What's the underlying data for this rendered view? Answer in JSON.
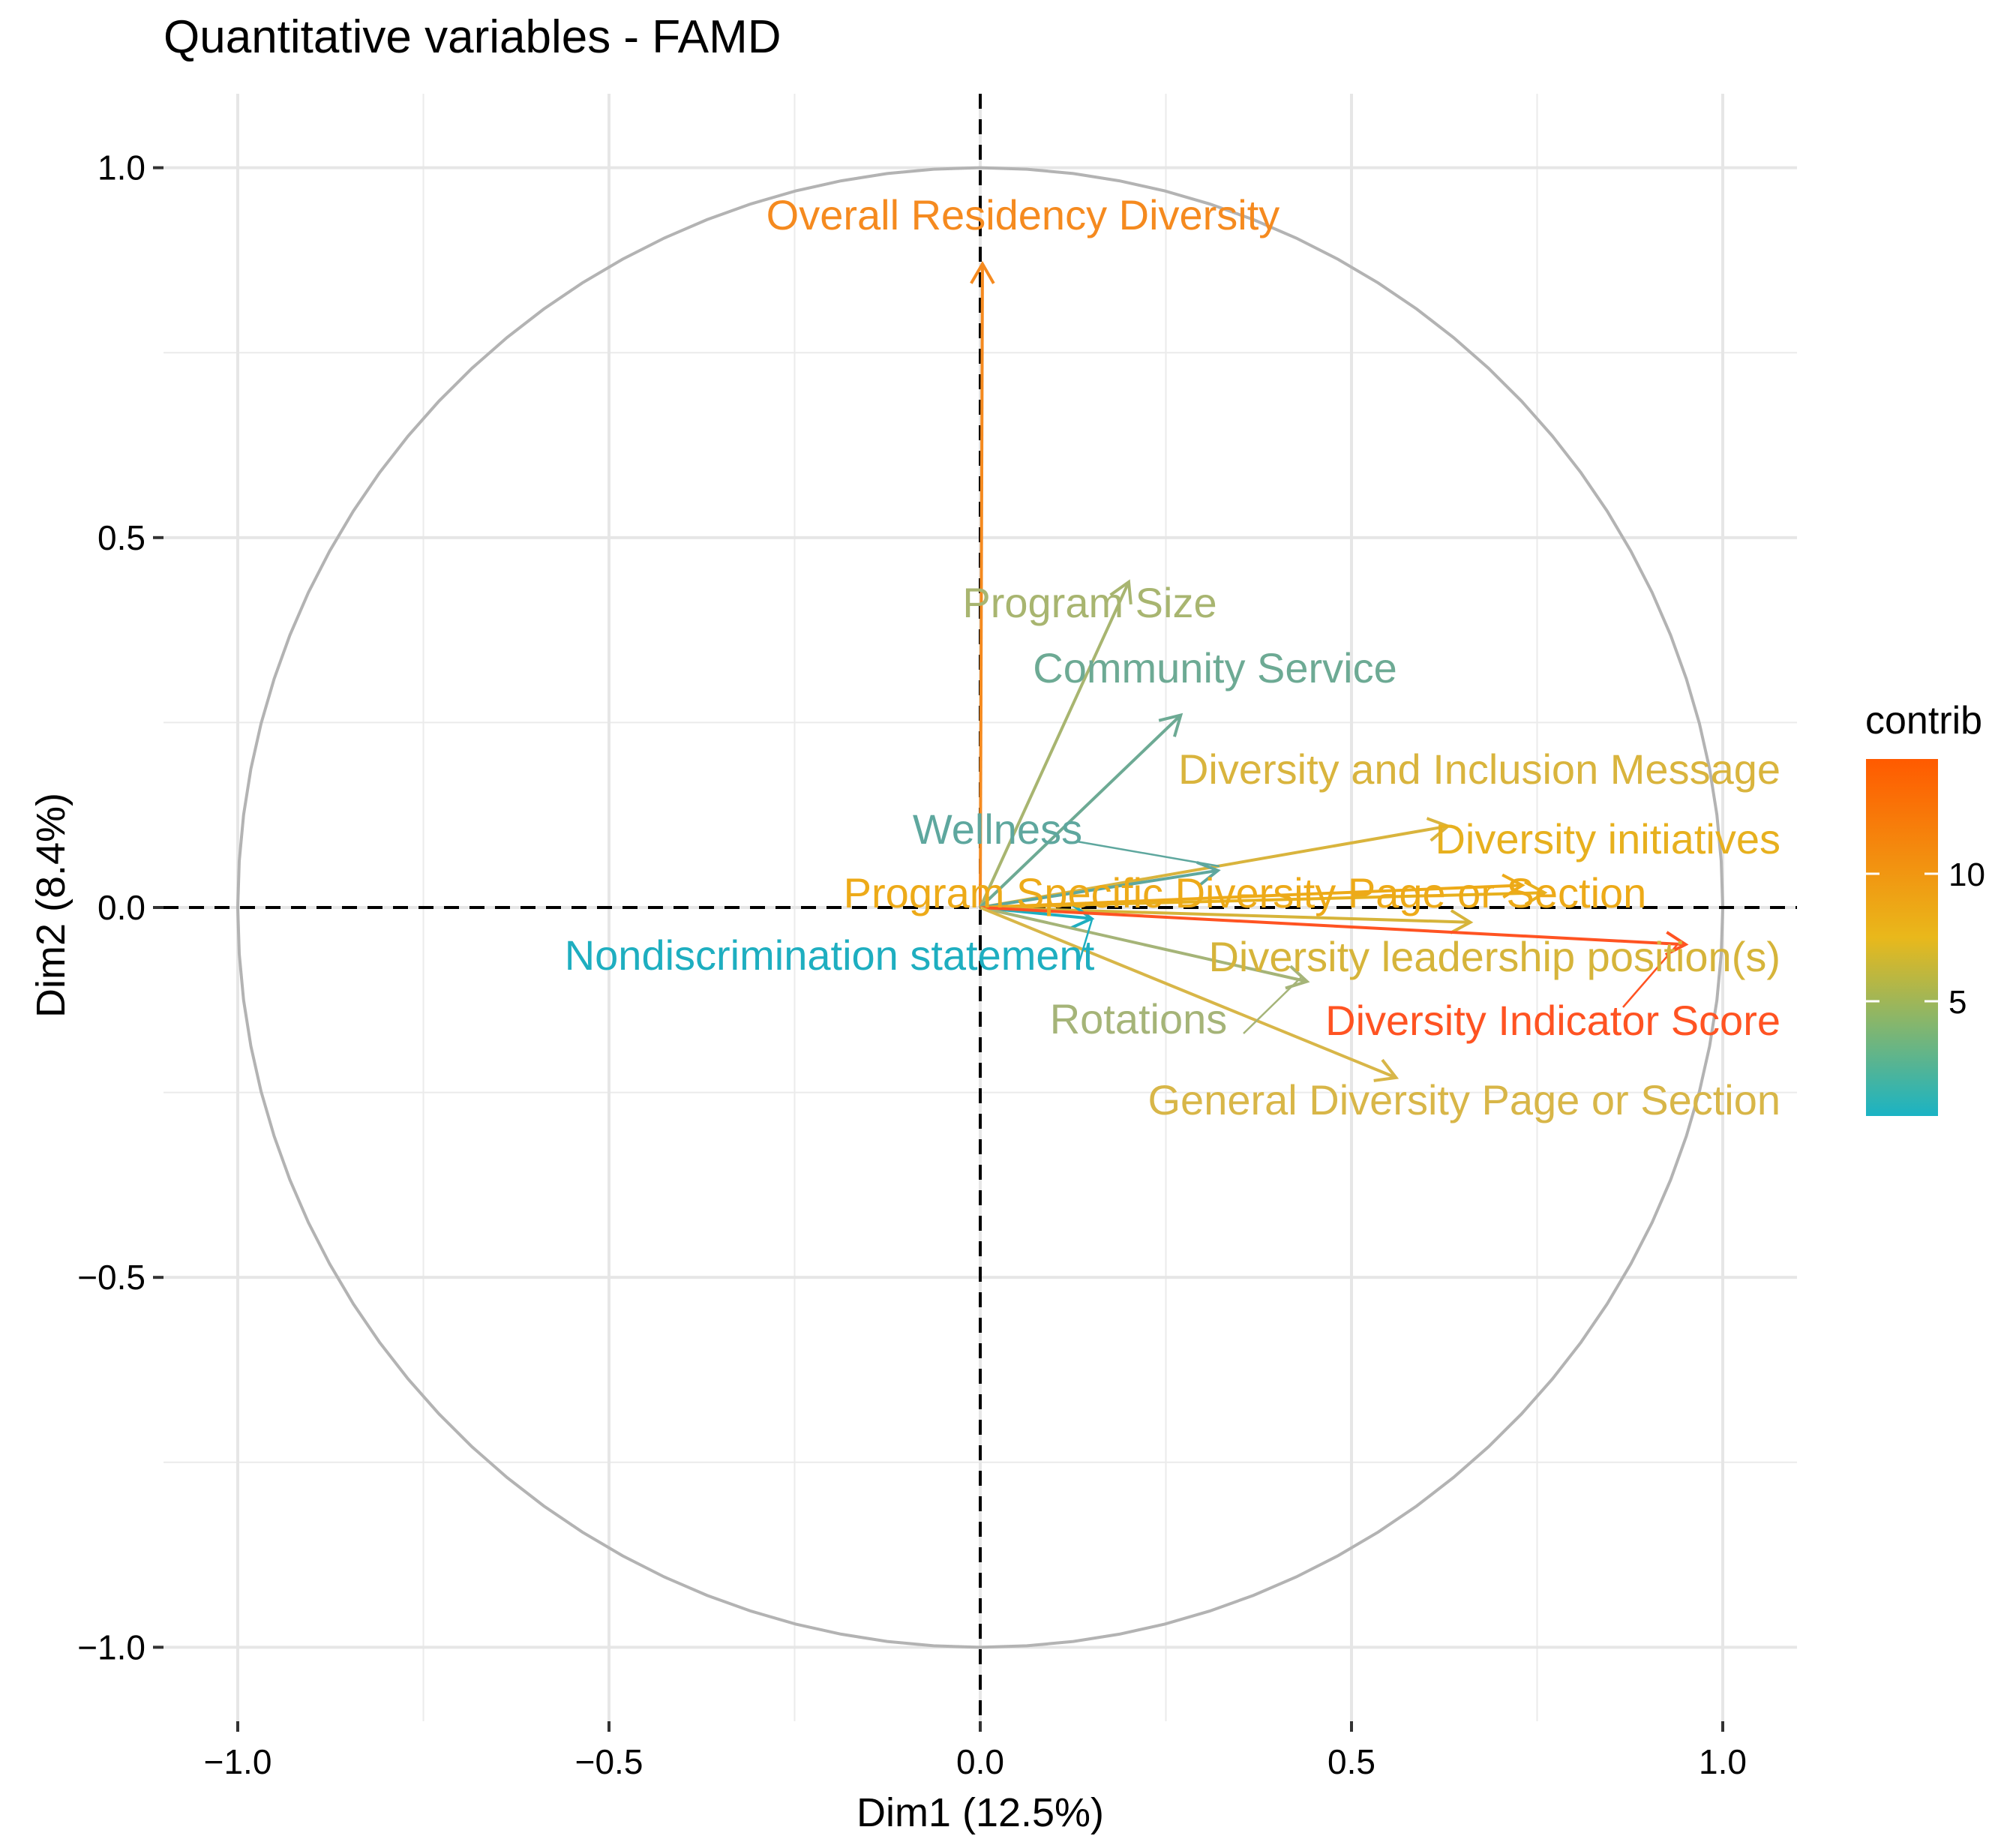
{
  "chart_data": {
    "type": "scatter",
    "subtype": "variable-correlation-circle",
    "title": "Quantitative variables - FAMD",
    "xlabel": "Dim1 (12.5%)",
    "ylabel": "Dim2 (8.4%)",
    "xlim": [
      -1.1,
      1.1
    ],
    "ylim": [
      -1.1,
      1.1
    ],
    "x_ticks": [
      -1.0,
      -0.5,
      0.0,
      0.5,
      1.0
    ],
    "y_ticks": [
      -1.0,
      -0.5,
      0.0,
      0.5,
      1.0
    ],
    "x_tick_labels": [
      "−1.0",
      "−0.5",
      "0.0",
      "0.5",
      "1.0"
    ],
    "y_tick_labels": [
      "−1.0",
      "−0.5",
      "0.0",
      "0.5",
      "1.0"
    ],
    "grid": true,
    "unit_circle": true,
    "reference_lines": "dashed at x=0 and y=0",
    "legend": {
      "title": "contrib",
      "placement": "right",
      "type": "colorbar",
      "min": 0.5,
      "max": 14.5,
      "ticks": [
        5,
        10
      ],
      "tick_labels": [
        "5",
        "10"
      ],
      "gradient": [
        "#1AB3C4",
        "#E9B81B",
        "#FF5A00"
      ]
    },
    "variables": [
      {
        "name": "Overall Residency Diversity",
        "x": 0.003,
        "y": 0.87,
        "contrib": 11.5,
        "color": "#F58A1F"
      },
      {
        "name": "Program Size",
        "x": 0.2,
        "y": 0.44,
        "contrib": 4.5,
        "color": "#A8B570"
      },
      {
        "name": "Community Service",
        "x": 0.27,
        "y": 0.26,
        "contrib": 3.0,
        "color": "#6DAA94"
      },
      {
        "name": "Diversity and Inclusion Message",
        "x": 0.63,
        "y": 0.11,
        "contrib": 6.8,
        "color": "#D9B43D"
      },
      {
        "name": "Wellness",
        "x": 0.32,
        "y": 0.05,
        "contrib": 2.8,
        "color": "#5EA79E"
      },
      {
        "name": "Diversity initiatives",
        "x": 0.76,
        "y": 0.02,
        "contrib": 8.0,
        "color": "#E7B01E"
      },
      {
        "name": "Program Specific Diversity Page or Section",
        "x": 0.73,
        "y": 0.03,
        "contrib": 8.5,
        "color": "#EDAA18"
      },
      {
        "name": "Diversity leadership position(s)",
        "x": 0.66,
        "y": -0.02,
        "contrib": 6.5,
        "color": "#D6B43A"
      },
      {
        "name": "Nondiscrimination statement",
        "x": 0.15,
        "y": -0.015,
        "contrib": 0.8,
        "color": "#1EAEC0"
      },
      {
        "name": "Rotations",
        "x": 0.44,
        "y": -0.1,
        "contrib": 4.2,
        "color": "#A5B478"
      },
      {
        "name": "Diversity Indicator Score",
        "x": 0.95,
        "y": -0.05,
        "contrib": 14.0,
        "color": "#FF5322"
      },
      {
        "name": "General Diversity Page or Section",
        "x": 0.56,
        "y": -0.23,
        "contrib": 6.0,
        "color": "#D8B648"
      }
    ]
  }
}
